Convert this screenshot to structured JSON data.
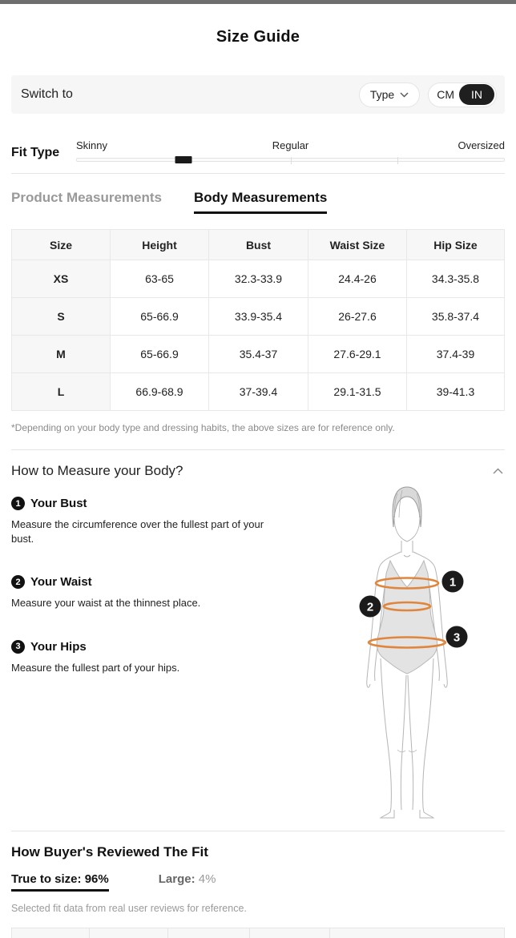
{
  "header": {
    "title": "Size Guide"
  },
  "switch_bar": {
    "label": "Switch to",
    "type_button": "Type",
    "unit_cm": "CM",
    "unit_in": "IN",
    "selected_unit": "IN"
  },
  "fit_type": {
    "label": "Fit Type",
    "options": [
      "Skinny",
      "Regular",
      "Oversized"
    ],
    "marker_percent": 25
  },
  "tabs": [
    {
      "label": "Product Measurements",
      "active": false
    },
    {
      "label": "Body Measurements",
      "active": true
    }
  ],
  "size_table": {
    "columns": [
      "Size",
      "Height",
      "Bust",
      "Waist Size",
      "Hip Size"
    ],
    "rows": [
      [
        "XS",
        "63-65",
        "32.3-33.9",
        "24.4-26",
        "34.3-35.8"
      ],
      [
        "S",
        "65-66.9",
        "33.9-35.4",
        "26-27.6",
        "35.8-37.4"
      ],
      [
        "M",
        "65-66.9",
        "35.4-37",
        "27.6-29.1",
        "37.4-39"
      ],
      [
        "L",
        "66.9-68.9",
        "37-39.4",
        "29.1-31.5",
        "39-41.3"
      ]
    ],
    "disclaimer": "*Depending on your body type and dressing habits, the above sizes are for reference only."
  },
  "how_to_measure": {
    "title": "How to Measure your Body?",
    "items": [
      {
        "num": "1",
        "title": "Your Bust",
        "desc": "Measure the circumference over the fullest part of your bust."
      },
      {
        "num": "2",
        "title": "Your Waist",
        "desc": "Measure your waist at the thinnest place."
      },
      {
        "num": "3",
        "title": "Your Hips",
        "desc": "Measure the fullest part of your hips."
      }
    ]
  },
  "fit_review": {
    "title": "How Buyer's Reviewed The Fit",
    "stats": [
      {
        "label": "True to size:",
        "value": "96%",
        "active": true
      },
      {
        "label": "Large:",
        "value": "4%",
        "active": false
      }
    ],
    "note": "Selected fit data from real user reviews for reference."
  },
  "colors": {
    "accent_orange": "#e0853c",
    "active_black": "#1a1a1a",
    "top_bar_gray": "#6e6e6e"
  }
}
